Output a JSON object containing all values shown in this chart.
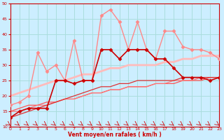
{
  "background_color": "#cceeff",
  "grid_color": "#aadddd",
  "xlabel": "Vent moyen/en rafales ( km/h )",
  "xlabel_color": "#cc0000",
  "tick_color": "#cc0000",
  "ylim": [
    10,
    50
  ],
  "xlim": [
    0,
    23
  ],
  "yticks": [
    10,
    15,
    20,
    25,
    30,
    35,
    40,
    45,
    50
  ],
  "xticks": [
    0,
    1,
    2,
    3,
    4,
    5,
    6,
    7,
    8,
    9,
    10,
    11,
    12,
    13,
    14,
    15,
    16,
    17,
    18,
    19,
    20,
    21,
    22,
    23
  ],
  "lines": [
    {
      "x": [
        0,
        1,
        2,
        3,
        4,
        5,
        6,
        7,
        8,
        9,
        10,
        11,
        12,
        13,
        14,
        15,
        16,
        17,
        18,
        19,
        20,
        21,
        22,
        23
      ],
      "y": [
        13,
        15,
        16,
        16,
        16,
        25,
        25,
        24,
        25,
        25,
        35,
        35,
        32,
        35,
        35,
        35,
        32,
        32,
        29,
        26,
        26,
        26,
        25,
        26
      ],
      "color": "#cc0000",
      "lw": 1.2,
      "marker": "D",
      "ms": 2.5,
      "zorder": 5
    },
    {
      "x": [
        0,
        1,
        2,
        3,
        4,
        5,
        6,
        7,
        8,
        9,
        10,
        11,
        12,
        13,
        14,
        15,
        16,
        17,
        18,
        19,
        20,
        21,
        22,
        23
      ],
      "y": [
        17,
        18,
        20,
        34,
        28,
        30,
        25,
        38,
        25,
        25,
        46,
        48,
        44,
        35,
        44,
        35,
        32,
        41,
        41,
        36,
        35,
        35,
        34,
        32
      ],
      "color": "#ff8888",
      "lw": 1.0,
      "marker": "D",
      "ms": 2.5,
      "zorder": 4
    },
    {
      "x": [
        0,
        1,
        2,
        3,
        4,
        5,
        6,
        7,
        8,
        9,
        10,
        11,
        12,
        13,
        14,
        15,
        16,
        17,
        18,
        19,
        20,
        21,
        22,
        23
      ],
      "y": [
        20,
        21,
        22,
        23,
        24,
        25,
        25,
        26,
        27,
        27,
        28,
        29,
        29,
        30,
        30,
        30,
        30,
        31,
        31,
        32,
        32,
        33,
        33,
        33
      ],
      "color": "#ffbbbb",
      "lw": 2.0,
      "marker": null,
      "ms": 0,
      "zorder": 2
    },
    {
      "x": [
        0,
        1,
        2,
        3,
        4,
        5,
        6,
        7,
        8,
        9,
        10,
        11,
        12,
        13,
        14,
        15,
        16,
        17,
        18,
        19,
        20,
        21,
        22,
        23
      ],
      "y": [
        15,
        16,
        17,
        17,
        18,
        18,
        19,
        19,
        20,
        21,
        21,
        22,
        22,
        23,
        23,
        23,
        24,
        24,
        24,
        25,
        25,
        25,
        26,
        26
      ],
      "color": "#ff5555",
      "lw": 0.9,
      "marker": null,
      "ms": 0,
      "zorder": 2
    },
    {
      "x": [
        0,
        1,
        2,
        3,
        4,
        5,
        6,
        7,
        8,
        9,
        10,
        11,
        12,
        13,
        14,
        15,
        16,
        17,
        18,
        19,
        20,
        21,
        22,
        23
      ],
      "y": [
        15,
        15,
        16,
        17,
        17,
        18,
        19,
        19,
        20,
        21,
        21,
        22,
        22,
        23,
        23,
        23,
        24,
        24,
        25,
        25,
        25,
        26,
        26,
        26
      ],
      "color": "#ff7777",
      "lw": 0.9,
      "marker": null,
      "ms": 0,
      "zorder": 2
    },
    {
      "x": [
        0,
        1,
        2,
        3,
        4,
        5,
        6,
        7,
        8,
        9,
        10,
        11,
        12,
        13,
        14,
        15,
        16,
        17,
        18,
        19,
        20,
        21,
        22,
        23
      ],
      "y": [
        13,
        14,
        15,
        16,
        17,
        18,
        19,
        20,
        21,
        22,
        23,
        23,
        24,
        24,
        25,
        25,
        25,
        25,
        25,
        26,
        26,
        26,
        26,
        26
      ],
      "color": "#dd3333",
      "lw": 0.9,
      "marker": null,
      "ms": 0,
      "zorder": 2
    }
  ]
}
